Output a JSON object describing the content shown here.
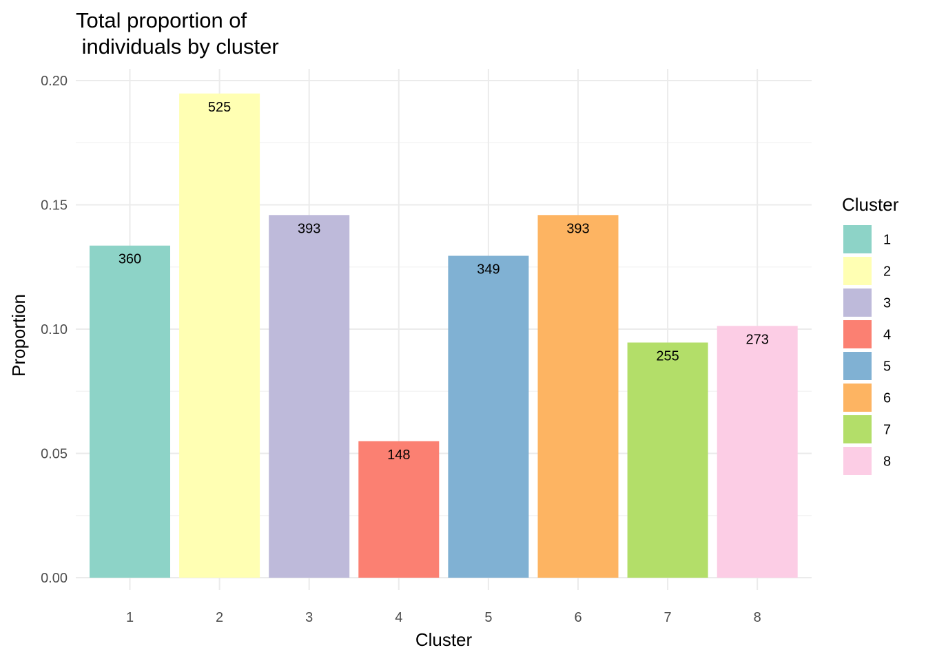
{
  "chart_data": {
    "type": "bar",
    "title": [
      "Total proportion of",
      " individuals by cluster"
    ],
    "xlabel": "Cluster",
    "ylabel": "Proportion",
    "categories": [
      "1",
      "2",
      "3",
      "4",
      "5",
      "6",
      "7",
      "8"
    ],
    "values": [
      0.1336,
      0.1948,
      0.1459,
      0.0549,
      0.1295,
      0.1459,
      0.0946,
      0.1013
    ],
    "labels": [
      "360",
      "525",
      "393",
      "148",
      "349",
      "393",
      "255",
      "273"
    ],
    "colors": [
      "#8DD3C7",
      "#FFFFB3",
      "#BEBADA",
      "#FB8072",
      "#80B1D3",
      "#FDB462",
      "#B3DE69",
      "#FCCDE5"
    ],
    "ylim": [
      0,
      0.2
    ],
    "yticks": [
      "0.00",
      "0.05",
      "0.10",
      "0.15",
      "0.20"
    ],
    "ytick_values": [
      0,
      0.05,
      0.1,
      0.15,
      0.2
    ],
    "grid": true,
    "legend": {
      "title": "Cluster",
      "position": "right",
      "items": [
        "1",
        "2",
        "3",
        "4",
        "5",
        "6",
        "7",
        "8"
      ]
    }
  }
}
